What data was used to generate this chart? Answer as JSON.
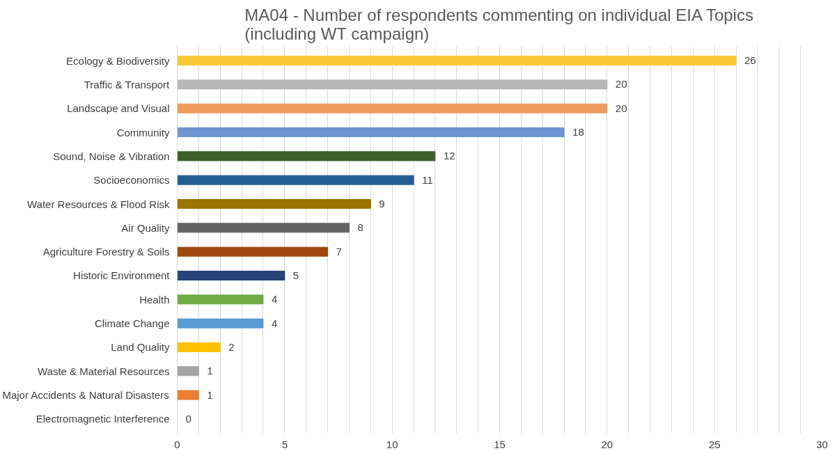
{
  "chart_data": {
    "type": "bar",
    "orientation": "horizontal",
    "title": "MA04 - Number of respondents commenting on individual EIA Topics\n(including WT campaign)",
    "categories": [
      "Ecology & Biodiversity",
      "Traffic & Transport",
      "Landscape and Visual",
      "Community",
      "Sound, Noise & Vibration",
      "Socioeconomics",
      "Water Resources & Flood Risk",
      "Air Quality",
      "Agriculture Forestry & Soils",
      "Historic Environment",
      "Health",
      "Climate Change",
      "Land Quality",
      "Waste & Material Resources",
      "Major Accidents & Natural Disasters",
      "Electromagnetic Interference"
    ],
    "values": [
      26,
      20,
      20,
      18,
      12,
      11,
      9,
      8,
      7,
      5,
      4,
      4,
      2,
      1,
      1,
      0
    ],
    "colors": [
      "#f8c935",
      "#b7b7b7",
      "#f09b5e",
      "#6f95d4",
      "#3e5f2a",
      "#255e91",
      "#9c7400",
      "#636363",
      "#9e480e",
      "#264478",
      "#70ad47",
      "#5b9bd5",
      "#ffc000",
      "#a5a5a5",
      "#ed7d31",
      "#4472c4"
    ],
    "data_labels": true,
    "xlim": [
      0,
      30
    ],
    "xticks": [
      0,
      {
        "value": 1,
        "label": null
      },
      {
        "value": 2,
        "label": null
      },
      {
        "value": 3,
        "label": null
      },
      {
        "value": 4,
        "label": null
      },
      5,
      {
        "value": 6,
        "label": null
      },
      {
        "value": 7,
        "label": null
      },
      {
        "value": 8,
        "label": null
      },
      {
        "value": 9,
        "label": null
      },
      10,
      {
        "value": 11,
        "label": null
      },
      {
        "value": 12,
        "label": null
      },
      {
        "value": 13,
        "label": null
      },
      {
        "value": 14,
        "label": null
      },
      15,
      {
        "value": 16,
        "label": null
      },
      {
        "value": 17,
        "label": null
      },
      {
        "value": 18,
        "label": null
      },
      {
        "value": 19,
        "label": null
      },
      20,
      {
        "value": 21,
        "label": null
      },
      {
        "value": 22,
        "label": null
      },
      {
        "value": 23,
        "label": null
      },
      {
        "value": 24,
        "label": null
      },
      25,
      {
        "value": 26,
        "label": null
      },
      {
        "value": 27,
        "label": null
      },
      {
        "value": 28,
        "label": null
      },
      {
        "value": 29,
        "label": null
      },
      30
    ],
    "grid": "x"
  }
}
